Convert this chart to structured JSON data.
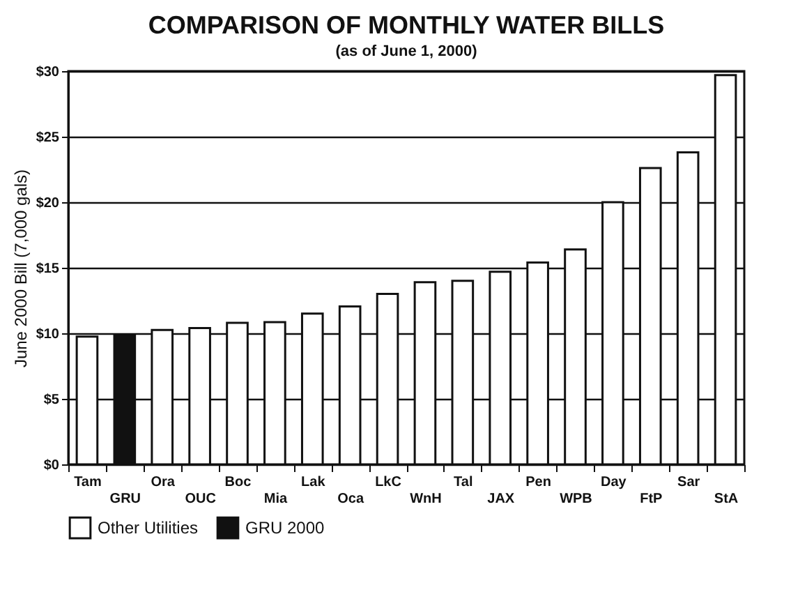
{
  "chart_data": {
    "type": "bar",
    "title": "COMPARISON OF MONTHLY WATER BILLS",
    "subtitle": "(as of June 1, 2000)",
    "ylabel": "June 2000 Bill (7,000 gals)",
    "categories": [
      "Tam",
      "GRU",
      "Ora",
      "OUC",
      "Boc",
      "Mia",
      "Lak",
      "Oca",
      "LkC",
      "WnH",
      "Tal",
      "JAX",
      "Pen",
      "WPB",
      "Day",
      "FtP",
      "Sar",
      "StA"
    ],
    "series": [
      {
        "name": "Other Utilities",
        "color": "#ffffff",
        "values": [
          9.75,
          null,
          10.25,
          10.4,
          10.8,
          10.85,
          11.5,
          12.05,
          13.0,
          13.9,
          14.0,
          14.7,
          15.4,
          16.4,
          20.0,
          22.6,
          23.8,
          29.7
        ]
      },
      {
        "name": "GRU 2000",
        "color": "#111111",
        "values": [
          null,
          9.9,
          null,
          null,
          null,
          null,
          null,
          null,
          null,
          null,
          null,
          null,
          null,
          null,
          null,
          null,
          null,
          null
        ]
      }
    ],
    "ylim": [
      0,
      30
    ],
    "yticks": [
      {
        "value": 0,
        "label": "$0"
      },
      {
        "value": 5,
        "label": "$5"
      },
      {
        "value": 10,
        "label": "$10"
      },
      {
        "value": 15,
        "label": "$15"
      },
      {
        "value": 20,
        "label": "$20"
      },
      {
        "value": 25,
        "label": "$25"
      },
      {
        "value": 30,
        "label": "$30"
      }
    ],
    "grid": "y",
    "legend": "bottom"
  }
}
